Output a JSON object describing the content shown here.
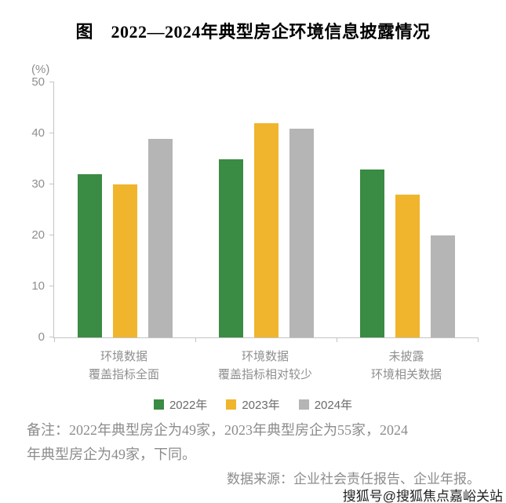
{
  "title": "图　2022—2024年典型房企环境信息披露情况",
  "chart_data": {
    "type": "bar",
    "title": "2022—2024年典型房企环境信息披露情况",
    "categories": [
      "环境数据\n覆盖指标全面",
      "环境数据\n覆盖指标相对较少",
      "未披露\n环境相关数据"
    ],
    "series": [
      {
        "name": "2022年",
        "color": "#3a8b43",
        "values": [
          32,
          35,
          33
        ]
      },
      {
        "name": "2023年",
        "color": "#f0b52d",
        "values": [
          30,
          42,
          28
        ]
      },
      {
        "name": "2024年",
        "color": "#b5b5b5",
        "values": [
          39,
          41,
          20
        ]
      }
    ],
    "xlabel": "",
    "ylabel": "(%)",
    "ylim": [
      0,
      50
    ],
    "yticks": [
      0,
      10,
      20,
      30,
      40,
      50
    ],
    "grid": false,
    "legend_position": "bottom"
  },
  "note": "备注：2022年典型房企为49家，2023年典型房企为55家，2024\n年典型房企为49家，下同。",
  "source": "数据来源：企业社会责任报告、企业年报。",
  "watermark": "搜狐号@搜狐焦点嘉峪关站"
}
